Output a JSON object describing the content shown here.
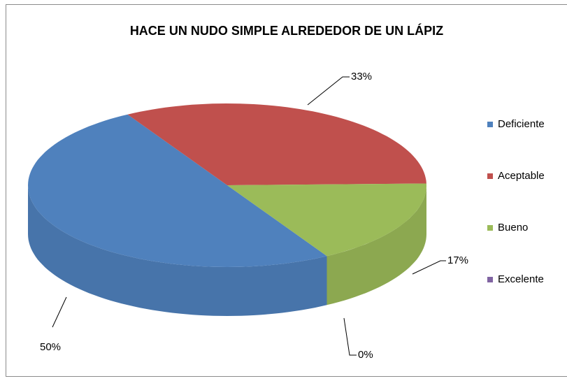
{
  "chart_data": {
    "type": "pie",
    "title": "HACE UN NUDO SIMPLE ALREDEDOR DE UN LÁPIZ",
    "categories": [
      "Deficiente",
      "Aceptable",
      "Bueno",
      "Excelente"
    ],
    "values": [
      50,
      33,
      17,
      0
    ],
    "value_labels": [
      "50%",
      "33%",
      "17%",
      "0%"
    ],
    "colors": [
      "#4f81bd",
      "#c0504d",
      "#9bbb59",
      "#8064a2"
    ],
    "legend": "right"
  }
}
